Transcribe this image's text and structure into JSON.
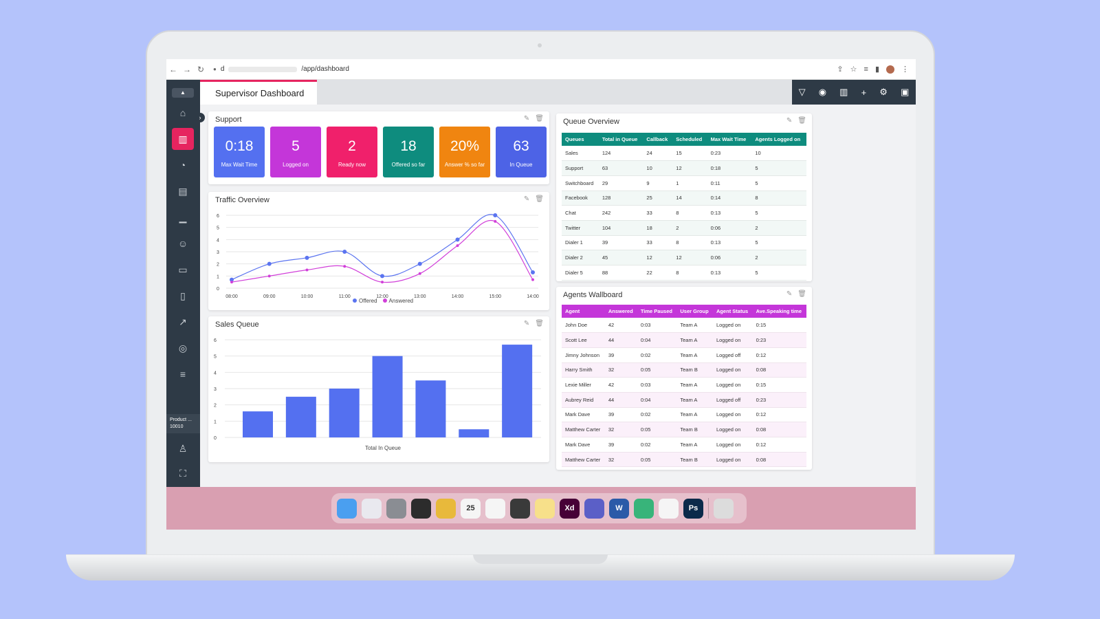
{
  "browser": {
    "url_prefix": "d",
    "url_path": "/app/dashboard"
  },
  "page": {
    "tab_title": "Supervisor Dashboard"
  },
  "sidebar": {
    "product_label": "Product ...",
    "product_number": "10010",
    "items": [
      {
        "icon": "home-icon",
        "symbol": "⌂"
      },
      {
        "icon": "analytics-icon",
        "symbol": "▥"
      },
      {
        "icon": "pie-chart-icon",
        "symbol": "◔"
      },
      {
        "icon": "wallboard-icon",
        "symbol": "▤"
      },
      {
        "icon": "bar-chart-icon",
        "symbol": "▁"
      },
      {
        "icon": "users-icon",
        "symbol": "☺"
      },
      {
        "icon": "devices-icon",
        "symbol": "▭"
      },
      {
        "icon": "book-icon",
        "symbol": "▯"
      },
      {
        "icon": "trend-icon",
        "symbol": "↗"
      },
      {
        "icon": "camera-icon",
        "symbol": "◎"
      },
      {
        "icon": "library-icon",
        "symbol": "≡"
      }
    ]
  },
  "toolbar": [
    {
      "icon": "filter-icon",
      "symbol": "▽"
    },
    {
      "icon": "eye-icon",
      "symbol": "◉"
    },
    {
      "icon": "trash-icon",
      "symbol": "▥"
    },
    {
      "icon": "plus-icon",
      "symbol": "+"
    },
    {
      "icon": "settings-icon",
      "symbol": "⚙"
    },
    {
      "icon": "save-icon",
      "symbol": "▣"
    }
  ],
  "support": {
    "title": "Support",
    "tiles": [
      {
        "value": "0:18",
        "label": "Max Wait Time",
        "color": "#5470f0"
      },
      {
        "value": "5",
        "label": "Logged on",
        "color": "#c436d9"
      },
      {
        "value": "2",
        "label": "Ready now",
        "color": "#f0206b"
      },
      {
        "value": "18",
        "label": "Offered so far",
        "color": "#0e8c7e"
      },
      {
        "value": "20%",
        "label": "Answer % so far",
        "color": "#f08510"
      },
      {
        "value": "63",
        "label": "In Queue",
        "color": "#4d63e6"
      }
    ]
  },
  "traffic": {
    "title": "Traffic Overview",
    "legend_offered": "Offered",
    "legend_answered": "Answered"
  },
  "sales": {
    "title": "Sales Queue",
    "xlabel": "Total In Queue"
  },
  "chart_data": [
    {
      "type": "line",
      "title": "Traffic Overview",
      "x": [
        "08:00",
        "09:00",
        "10:00",
        "11:00",
        "12:00",
        "13:00",
        "14:00",
        "15:00",
        "14:00"
      ],
      "ylim": [
        0,
        6
      ],
      "yticks": [
        0,
        1,
        2,
        3,
        4,
        5,
        6
      ],
      "grid": true,
      "legend": "bottom",
      "series": [
        {
          "name": "Offered",
          "color": "#5b74f0",
          "values": [
            0.7,
            2.0,
            2.5,
            3.0,
            1.0,
            2.0,
            4.0,
            6.0,
            1.3
          ]
        },
        {
          "name": "Answered",
          "color": "#d13fd9",
          "values": [
            0.5,
            1.0,
            1.5,
            1.8,
            0.5,
            1.2,
            3.5,
            5.5,
            0.7
          ]
        }
      ]
    },
    {
      "type": "bar",
      "title": "Sales Queue",
      "xlabel": "Total In Queue",
      "ylim": [
        0,
        6
      ],
      "yticks": [
        0,
        1,
        2,
        3,
        4,
        5,
        6
      ],
      "grid": true,
      "color": "#5470f0",
      "values": [
        1.6,
        2.5,
        3.0,
        5.0,
        3.5,
        0.5,
        5.7
      ]
    }
  ],
  "queue": {
    "title": "Queue Overview",
    "header_color": "#0e8c7e",
    "columns": [
      "Queues",
      "Total in Queue",
      "Callback",
      "Scheduled",
      "Max Wait Time",
      "Agents Logged on"
    ],
    "rows": [
      [
        "Sales",
        "124",
        "24",
        "15",
        "0:23",
        "10"
      ],
      [
        "Support",
        "63",
        "10",
        "12",
        "0:18",
        "5"
      ],
      [
        "Switchboard",
        "29",
        "9",
        "1",
        "0:11",
        "5"
      ],
      [
        "Facebook",
        "128",
        "25",
        "14",
        "0:14",
        "8"
      ],
      [
        "Chat",
        "242",
        "33",
        "8",
        "0:13",
        "5"
      ],
      [
        "Twitter",
        "104",
        "18",
        "2",
        "0:06",
        "2"
      ],
      [
        "Dialer 1",
        "39",
        "33",
        "8",
        "0:13",
        "5"
      ],
      [
        "Dialer 2",
        "45",
        "12",
        "12",
        "0:06",
        "2"
      ],
      [
        "Dialer 5",
        "88",
        "22",
        "8",
        "0:13",
        "5"
      ]
    ]
  },
  "agents": {
    "title": "Agents Wallboard",
    "header_color": "#c436d9",
    "columns": [
      "Agent",
      "Answered",
      "Time Paused",
      "User Group",
      "Agent Status",
      "Ave.Speaking time"
    ],
    "rows": [
      [
        "John Doe",
        "42",
        "0:03",
        "Team A",
        "Logged on",
        "0:15"
      ],
      [
        "Scott Lee",
        "44",
        "0:04",
        "Team A",
        "Logged on",
        "0:23"
      ],
      [
        "Jimny Johnson",
        "39",
        "0:02",
        "Team A",
        "Logged off",
        "0:12"
      ],
      [
        "Harry Smith",
        "32",
        "0:05",
        "Team B",
        "Logged on",
        "0:08"
      ],
      [
        "Lexie Miller",
        "42",
        "0:03",
        "Team A",
        "Logged on",
        "0:15"
      ],
      [
        "Aubrey Reid",
        "44",
        "0:04",
        "Team A",
        "Logged off",
        "0:23"
      ],
      [
        "Mark Dave",
        "39",
        "0:02",
        "Team A",
        "Logged on",
        "0:12"
      ],
      [
        "Matthew Carter",
        "32",
        "0:05",
        "Team B",
        "Logged on",
        "0:08"
      ],
      [
        "Mark Dave",
        "39",
        "0:02",
        "Team A",
        "Logged on",
        "0:12"
      ],
      [
        "Matthew Carter",
        "32",
        "0:05",
        "Team B",
        "Logged on",
        "0:08"
      ]
    ]
  },
  "dock": [
    {
      "name": "finder",
      "label": "",
      "color": "#4a9ff0"
    },
    {
      "name": "launchpad",
      "label": "",
      "color": "#e9e9ef"
    },
    {
      "name": "settings",
      "label": "",
      "color": "#8a8d93"
    },
    {
      "name": "figma",
      "label": "",
      "color": "#2c2c2c"
    },
    {
      "name": "chrome",
      "label": "",
      "color": "#e8b93b"
    },
    {
      "name": "calendar",
      "label": "25",
      "color": "#f5f5f5"
    },
    {
      "name": "slack",
      "label": "",
      "color": "#f5f5f5"
    },
    {
      "name": "activity-monitor",
      "label": "",
      "color": "#3a3a3a"
    },
    {
      "name": "notes",
      "label": "",
      "color": "#f7e08a"
    },
    {
      "name": "xd",
      "label": "Xd",
      "color": "#470137"
    },
    {
      "name": "teams",
      "label": "",
      "color": "#5b5fc7"
    },
    {
      "name": "word",
      "label": "W",
      "color": "#2b5aa8"
    },
    {
      "name": "vpn",
      "label": "",
      "color": "#38b47a"
    },
    {
      "name": "messenger",
      "label": "",
      "color": "#f5f5f5"
    },
    {
      "name": "photoshop",
      "label": "Ps",
      "color": "#0b2a4a"
    },
    {
      "name": "trash",
      "label": "",
      "color": "#dcdcdc"
    }
  ]
}
